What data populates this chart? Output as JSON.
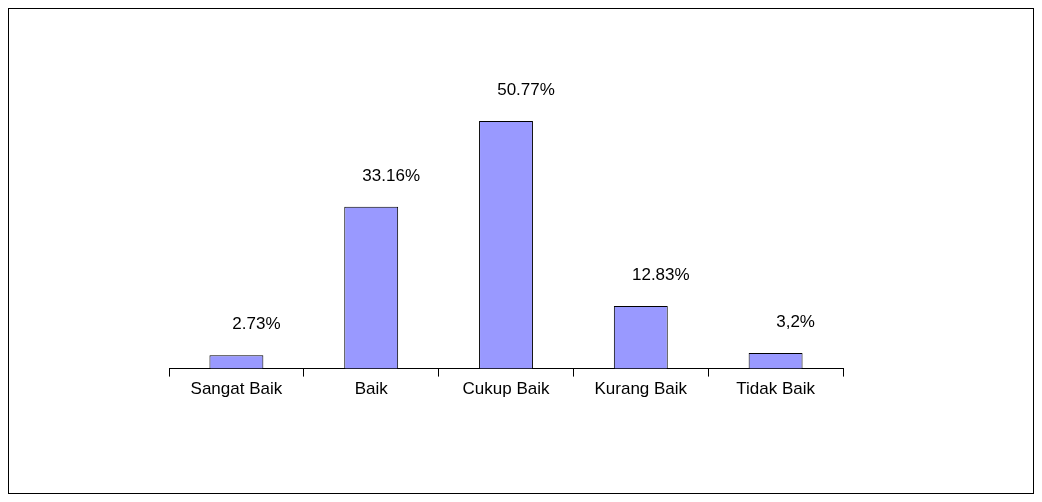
{
  "chart_data": {
    "type": "bar",
    "categories": [
      "Sangat Baik",
      "Baik",
      "Cukup Baik",
      "Kurang Baik",
      "Tidak Baik"
    ],
    "values": [
      2.73,
      33.16,
      50.77,
      12.83,
      3.2
    ],
    "value_labels": [
      "2.73%",
      "33.16%",
      "50.77%",
      "12.83%",
      "3,2%"
    ],
    "color": "#9999ff",
    "tick_labels": "x",
    "grid": false,
    "legend": false
  }
}
